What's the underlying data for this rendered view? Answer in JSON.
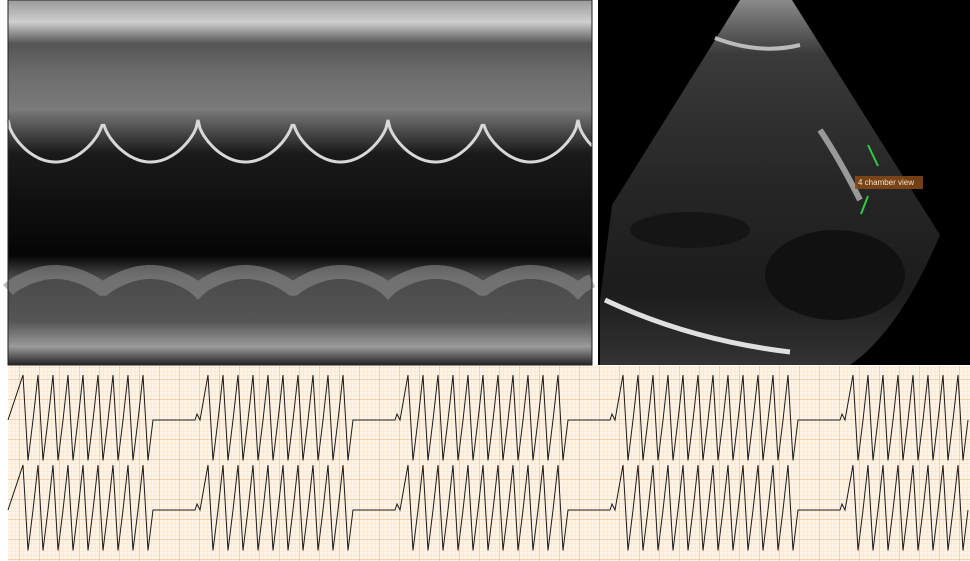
{
  "image": {
    "annotation": "4 chamber view"
  }
}
